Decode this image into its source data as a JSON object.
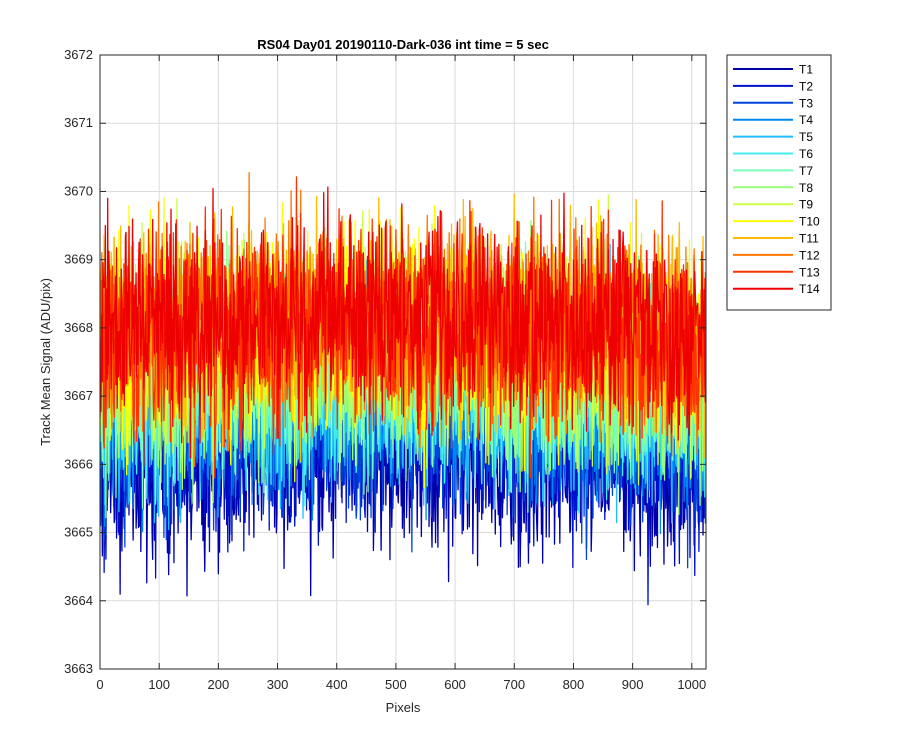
{
  "chart_data": {
    "type": "line",
    "title": "RS04 Day01 20190110-Dark-036 int time = 5 sec",
    "xlabel": "Pixels",
    "ylabel": "Track Mean Signal (ADU/pix)",
    "xlim": [
      0,
      1024
    ],
    "ylim": [
      3663,
      3672
    ],
    "x_ticks": [
      0,
      100,
      200,
      300,
      400,
      500,
      600,
      700,
      800,
      900,
      1000
    ],
    "y_ticks": [
      3663,
      3664,
      3665,
      3666,
      3667,
      3668,
      3669,
      3670,
      3671,
      3672
    ],
    "grid": true,
    "legend_position": "outside-top-right",
    "n_points": 1024,
    "series": [
      {
        "name": "T1",
        "color": "#0000AA",
        "mean": 3666.0,
        "spread": 0.75
      },
      {
        "name": "T2",
        "color": "#0011CC",
        "mean": 3666.3,
        "spread": 0.75
      },
      {
        "name": "T3",
        "color": "#0044DD",
        "mean": 3666.6,
        "spread": 0.75
      },
      {
        "name": "T4",
        "color": "#0088EE",
        "mean": 3666.8,
        "spread": 0.75
      },
      {
        "name": "T5",
        "color": "#22BBFF",
        "mean": 3667.0,
        "spread": 0.75
      },
      {
        "name": "T6",
        "color": "#44EEEE",
        "mean": 3667.1,
        "spread": 0.75
      },
      {
        "name": "T7",
        "color": "#77FFBB",
        "mean": 3667.2,
        "spread": 0.75
      },
      {
        "name": "T8",
        "color": "#99FF77",
        "mean": 3667.4,
        "spread": 0.75
      },
      {
        "name": "T9",
        "color": "#CCFF44",
        "mean": 3667.6,
        "spread": 0.75
      },
      {
        "name": "T10",
        "color": "#FFFF00",
        "mean": 3667.8,
        "spread": 0.75
      },
      {
        "name": "T11",
        "color": "#FFBB00",
        "mean": 3667.9,
        "spread": 0.75
      },
      {
        "name": "T12",
        "color": "#FF7700",
        "mean": 3667.9,
        "spread": 0.75
      },
      {
        "name": "T13",
        "color": "#FF3300",
        "mean": 3667.8,
        "spread": 0.75
      },
      {
        "name": "T14",
        "color": "#EE0000",
        "mean": 3668.0,
        "spread": 0.75
      }
    ]
  }
}
